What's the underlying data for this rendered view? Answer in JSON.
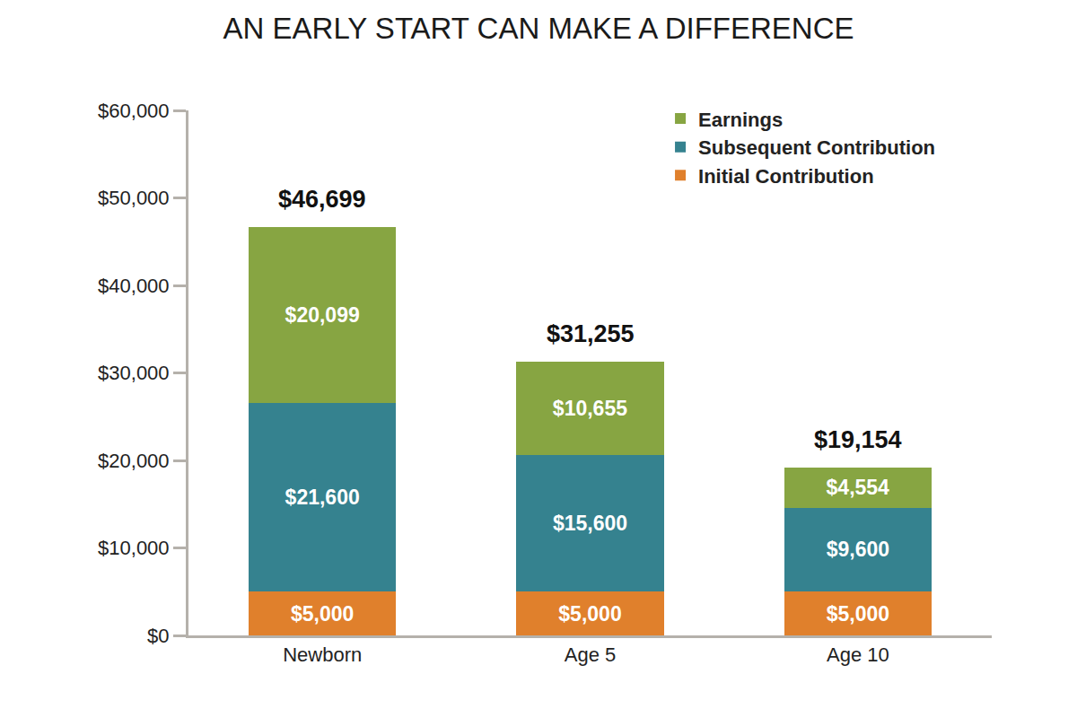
{
  "chart_data": {
    "type": "bar",
    "title": "AN EARLY START CAN MAKE A DIFFERENCE",
    "categories": [
      "Newborn",
      "Age 5",
      "Age 10"
    ],
    "series": [
      {
        "name": "Initial Contribution",
        "color": "#e0802c",
        "values": [
          5000,
          5000,
          5000
        ],
        "value_labels": [
          "$5,000",
          "$5,000",
          "$5,000"
        ]
      },
      {
        "name": "Subsequent Contribution",
        "color": "#35828f",
        "values": [
          21600,
          15600,
          9600
        ],
        "value_labels": [
          "$21,600",
          "$15,600",
          "$9,600"
        ]
      },
      {
        "name": "Earnings",
        "color": "#87a542",
        "values": [
          20099,
          10655,
          4554
        ],
        "value_labels": [
          "$20,099",
          "$10,655",
          "$4,554"
        ]
      }
    ],
    "annotations": [
      {
        "category": "Newborn",
        "value": 46699,
        "text": "$46,699"
      },
      {
        "category": "Age 5",
        "value": 31255,
        "text": "$31,255"
      },
      {
        "category": "Age 10",
        "value": 19154,
        "text": "$19,154"
      }
    ],
    "ylim": [
      0,
      60000
    ],
    "yticks": [
      {
        "value": 0,
        "label": "$0"
      },
      {
        "value": 10000,
        "label": "$10,000"
      },
      {
        "value": 20000,
        "label": "$20,000"
      },
      {
        "value": 30000,
        "label": "$30,000"
      },
      {
        "value": 40000,
        "label": "$40,000"
      },
      {
        "value": 50000,
        "label": "$50,000"
      },
      {
        "value": 60000,
        "label": "$60,000"
      }
    ],
    "stacked": true,
    "data_labels": true,
    "grid": false,
    "legend": "top right"
  }
}
